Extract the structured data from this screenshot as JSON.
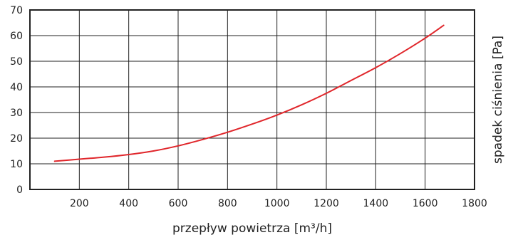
{
  "chart_data": {
    "type": "line",
    "xlabel": "przepływ powietrza [m³/h]",
    "ylabel": "spadek ciśnienia [Pa]",
    "xlim": [
      0,
      1800
    ],
    "ylim": [
      0,
      70
    ],
    "x_ticks": [
      "200",
      "400",
      "600",
      "800",
      "1000",
      "1200",
      "1400",
      "1600",
      "1800"
    ],
    "y_ticks": [
      "0",
      "10",
      "20",
      "30",
      "40",
      "50",
      "60",
      "70"
    ],
    "grid": true,
    "series": [
      {
        "color": "#e0262b",
        "x": [
          100,
          200,
          300,
          400,
          500,
          600,
          700,
          800,
          900,
          1000,
          1100,
          1200,
          1300,
          1400,
          1500,
          1600,
          1675
        ],
        "y": [
          11,
          11.8,
          12.6,
          13.6,
          15,
          17,
          19.5,
          22.3,
          25.5,
          29,
          33,
          37.5,
          42.5,
          47.5,
          53,
          59,
          64
        ]
      }
    ]
  }
}
